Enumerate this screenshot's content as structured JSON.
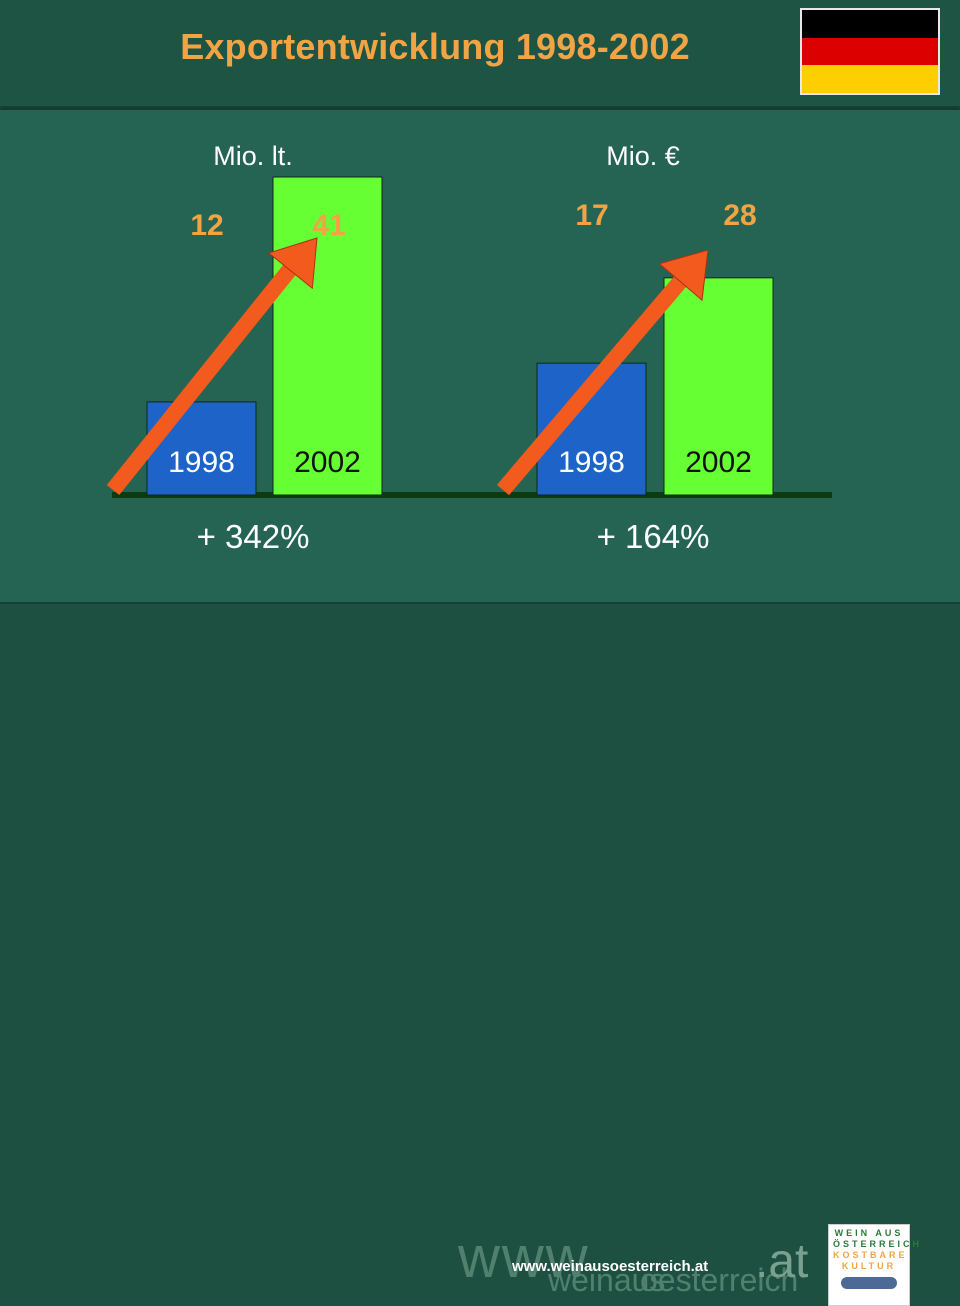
{
  "header": {
    "title": "Exportentwicklung 1998-2002",
    "flag_colors": [
      "#000000",
      "#dd0000",
      "#ffce00"
    ]
  },
  "chart_data": [
    {
      "type": "bar",
      "unit_label": "Mio. lt.",
      "categories": [
        "1998",
        "2002"
      ],
      "values": [
        12,
        41
      ],
      "value_labels": [
        "12",
        "41"
      ],
      "change_label": "+ 342%",
      "bar_colors": [
        "#1e64c8",
        "#66ff33"
      ],
      "trend_arrow": true,
      "ylim": [
        0,
        41
      ]
    },
    {
      "type": "bar",
      "unit_label": "Mio. €",
      "categories": [
        "1998",
        "2002"
      ],
      "values": [
        17,
        28
      ],
      "value_labels": [
        "17",
        "28"
      ],
      "change_label": "+ 164%",
      "bar_colors": [
        "#1e64c8",
        "#66ff33"
      ],
      "trend_arrow": true,
      "ylim": [
        0,
        41
      ]
    }
  ],
  "footer": {
    "watermark_www": "www",
    "watermark_weinaus": "weinaus",
    "watermark_oesterreich": "oesterreich",
    "watermark_at": ".at",
    "url": "www.weinausoesterreich.at",
    "logo_lines": [
      "WEIN AUS",
      "ÖSTERREICH",
      "KOSTBARE",
      "KULTUR"
    ]
  },
  "colors": {
    "value_label": "#f2a444",
    "arrow": "#f25a1e",
    "baseline": "#0c3a12",
    "text": "#ffffff"
  }
}
